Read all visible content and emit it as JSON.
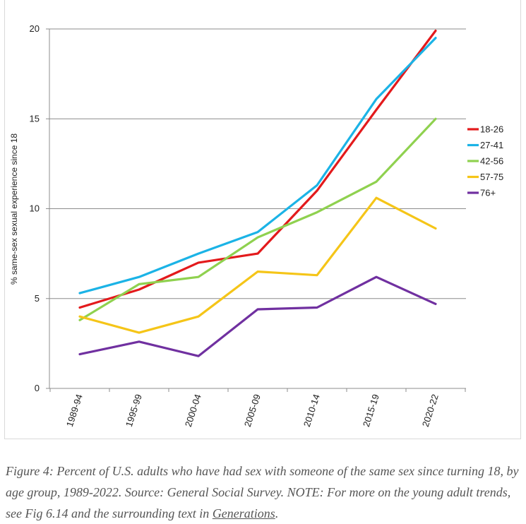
{
  "chart_data": {
    "type": "line",
    "title": "",
    "xlabel": "",
    "ylabel": "% same-sex sexual experience since 18",
    "ylim": [
      0,
      20
    ],
    "yticks": [
      0,
      5,
      10,
      15,
      20
    ],
    "grid": true,
    "legend_position": "right",
    "categories": [
      "1989-94",
      "1995-99",
      "2000-04",
      "2005-09",
      "2010-14",
      "2015-19",
      "2020-22"
    ],
    "series": [
      {
        "name": "18-26",
        "color": "#e31a1c",
        "values": [
          4.5,
          5.5,
          7.0,
          7.5,
          11.0,
          15.5,
          19.9
        ]
      },
      {
        "name": "27-41",
        "color": "#1bb3e6",
        "values": [
          5.3,
          6.2,
          7.5,
          8.7,
          11.3,
          16.1,
          19.5
        ]
      },
      {
        "name": "42-56",
        "color": "#8fd14f",
        "values": [
          3.8,
          5.8,
          6.2,
          8.4,
          9.8,
          11.5,
          15.0
        ]
      },
      {
        "name": "57-75",
        "color": "#f5c518",
        "values": [
          4.0,
          3.1,
          4.0,
          6.5,
          6.3,
          10.6,
          8.9
        ]
      },
      {
        "name": "76+",
        "color": "#7030a0",
        "values": [
          1.9,
          2.6,
          1.8,
          4.4,
          4.5,
          6.2,
          4.7
        ]
      }
    ]
  },
  "caption": {
    "text_before_link": "Figure 4: Percent of U.S. adults who have had sex with someone of the same sex since turning 18, by age group, 1989-2022. Source: General Social Survey. NOTE: For more on the young adult trends, see Fig 6.14 and the surrounding text in ",
    "link_text": "Generations",
    "text_after_link": "."
  }
}
